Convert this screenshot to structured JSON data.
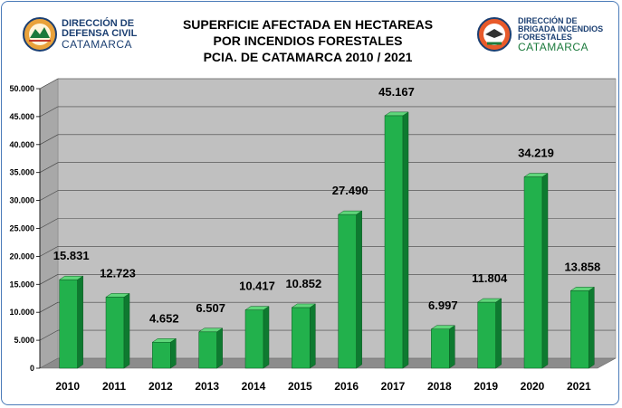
{
  "header": {
    "title_lines": [
      "SUPERFICIE AFECTADA EN HECTAREAS",
      "POR INCENDIOS FORESTALES",
      "PCIA. DE CATAMARCA 2010 / 2021"
    ]
  },
  "logo_left": {
    "line1": "DIRECCIÓN DE",
    "line2": "DEFENSA CIVIL",
    "line3": "CATAMARCA"
  },
  "logo_right": {
    "line1": "DIRECCIÓN DE",
    "line2": "BRIGADA INCENDIOS",
    "line3": "FORESTALES",
    "line4": "CATAMARCA"
  },
  "colors": {
    "bar_front": "#22b14c",
    "bar_side": "#0e7a30",
    "bar_top": "#5fd67a",
    "wall": "#c0c0c0",
    "floor": "#8c8c8c"
  },
  "chart_data": {
    "type": "bar",
    "title": "SUPERFICIE AFECTADA EN HECTAREAS POR INCENDIOS FORESTALES PCIA. DE CATAMARCA 2010 / 2021",
    "categories": [
      "2010",
      "2011",
      "2012",
      "2013",
      "2014",
      "2015",
      "2016",
      "2017",
      "2018",
      "2019",
      "2020",
      "2021"
    ],
    "values": [
      15831,
      12723,
      4652,
      6507,
      10417,
      10852,
      27490,
      45167,
      6997,
      11804,
      34219,
      13858
    ],
    "value_labels": [
      "15.831",
      "12.723",
      "4.652",
      "6.507",
      "10.417",
      "10.852",
      "27.490",
      "45.167",
      "6.997",
      "11.804",
      "34.219",
      "13.858"
    ],
    "ylim": [
      0,
      50000
    ],
    "yticks": [
      0,
      5000,
      10000,
      15000,
      20000,
      25000,
      30000,
      35000,
      40000,
      45000,
      50000
    ],
    "ytick_labels": [
      "0",
      "5.000",
      "10.000",
      "15.000",
      "20.000",
      "25.000",
      "30.000",
      "35.000",
      "40.000",
      "45.000",
      "50.000"
    ],
    "grid": true,
    "style": "3d-column"
  }
}
